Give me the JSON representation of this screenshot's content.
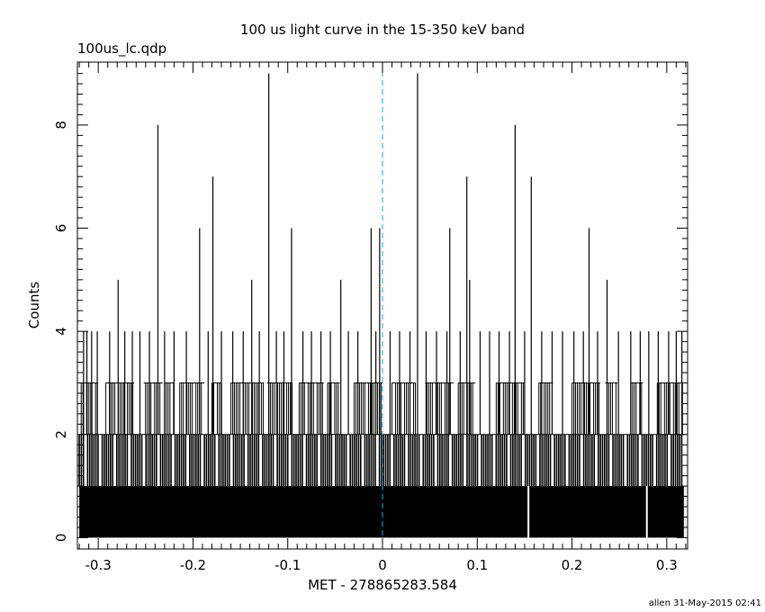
{
  "chart_data": {
    "type": "bar",
    "title": "100 us light curve in the 15-350 keV band",
    "subtitle": "100us_lc.qdp",
    "xlabel": "MET - 278865283.584",
    "ylabel": "Counts",
    "footer": "allen 31-May-2015 02:41",
    "xlim": [
      -0.322,
      0.322
    ],
    "ylim": [
      -0.22,
      9.22
    ],
    "xticks": [
      -0.3,
      -0.2,
      -0.1,
      0,
      0.1,
      0.2,
      0.3
    ],
    "xtick_labels": [
      "-0.3",
      "-0.2",
      "-0.1",
      "0",
      "0.1",
      "0.2",
      "0.3"
    ],
    "yticks": [
      0,
      2,
      4,
      6,
      8
    ],
    "ytick_labels": [
      "0",
      "2",
      "4",
      "6",
      "8"
    ],
    "bin_width": 0.0001,
    "x_range": [
      -0.32,
      0.32
    ],
    "min_count": 1,
    "typical_count": 2,
    "reference_line": {
      "x": 0,
      "color": "#2a9fd6",
      "style": "dashed"
    },
    "count_3_regions": [
      [
        -0.318,
        -0.3
      ],
      [
        -0.292,
        -0.262
      ],
      [
        -0.252,
        -0.232
      ],
      [
        -0.23,
        -0.22
      ],
      [
        -0.214,
        -0.188
      ],
      [
        -0.18,
        -0.17
      ],
      [
        -0.16,
        -0.125
      ],
      [
        -0.122,
        -0.095
      ],
      [
        -0.088,
        -0.062
      ],
      [
        -0.058,
        -0.045
      ],
      [
        -0.03,
        0.0
      ],
      [
        0.01,
        0.035
      ],
      [
        0.045,
        0.075
      ],
      [
        0.08,
        0.098
      ],
      [
        0.12,
        0.15
      ],
      [
        0.165,
        0.18
      ],
      [
        0.2,
        0.23
      ],
      [
        0.235,
        0.248
      ],
      [
        0.262,
        0.275
      ],
      [
        0.29,
        0.318
      ]
    ],
    "zero_bins": [
      0.154,
      0.279,
      0.319
    ],
    "peaks": [
      {
        "x": -0.3155,
        "y": 4
      },
      {
        "x": -0.312,
        "y": 4
      },
      {
        "x": -0.307,
        "y": 4
      },
      {
        "x": -0.301,
        "y": 4
      },
      {
        "x": -0.288,
        "y": 4
      },
      {
        "x": -0.279,
        "y": 5
      },
      {
        "x": -0.272,
        "y": 4
      },
      {
        "x": -0.264,
        "y": 4
      },
      {
        "x": -0.256,
        "y": 4
      },
      {
        "x": -0.246,
        "y": 4
      },
      {
        "x": -0.237,
        "y": 8
      },
      {
        "x": -0.23,
        "y": 4
      },
      {
        "x": -0.22,
        "y": 4
      },
      {
        "x": -0.207,
        "y": 4
      },
      {
        "x": -0.193,
        "y": 6
      },
      {
        "x": -0.184,
        "y": 4
      },
      {
        "x": -0.179,
        "y": 7
      },
      {
        "x": -0.17,
        "y": 4
      },
      {
        "x": -0.158,
        "y": 4
      },
      {
        "x": -0.147,
        "y": 4
      },
      {
        "x": -0.138,
        "y": 5
      },
      {
        "x": -0.13,
        "y": 4
      },
      {
        "x": -0.12,
        "y": 9
      },
      {
        "x": -0.112,
        "y": 4
      },
      {
        "x": -0.104,
        "y": 4
      },
      {
        "x": -0.096,
        "y": 6
      },
      {
        "x": -0.084,
        "y": 4
      },
      {
        "x": -0.075,
        "y": 4
      },
      {
        "x": -0.065,
        "y": 4
      },
      {
        "x": -0.055,
        "y": 4
      },
      {
        "x": -0.044,
        "y": 5
      },
      {
        "x": -0.036,
        "y": 4
      },
      {
        "x": -0.026,
        "y": 4
      },
      {
        "x": -0.012,
        "y": 6
      },
      {
        "x": -0.007,
        "y": 4
      },
      {
        "x": -0.003,
        "y": 6
      },
      {
        "x": 0.008,
        "y": 4
      },
      {
        "x": 0.018,
        "y": 4
      },
      {
        "x": 0.029,
        "y": 4
      },
      {
        "x": 0.037,
        "y": 9
      },
      {
        "x": 0.046,
        "y": 4
      },
      {
        "x": 0.057,
        "y": 4
      },
      {
        "x": 0.068,
        "y": 4
      },
      {
        "x": 0.071,
        "y": 6
      },
      {
        "x": 0.082,
        "y": 4
      },
      {
        "x": 0.089,
        "y": 7
      },
      {
        "x": 0.092,
        "y": 5
      },
      {
        "x": 0.103,
        "y": 4
      },
      {
        "x": 0.113,
        "y": 4
      },
      {
        "x": 0.123,
        "y": 4
      },
      {
        "x": 0.134,
        "y": 4
      },
      {
        "x": 0.14,
        "y": 8
      },
      {
        "x": 0.15,
        "y": 4
      },
      {
        "x": 0.157,
        "y": 7
      },
      {
        "x": 0.168,
        "y": 4
      },
      {
        "x": 0.179,
        "y": 4
      },
      {
        "x": 0.19,
        "y": 4
      },
      {
        "x": 0.202,
        "y": 4
      },
      {
        "x": 0.212,
        "y": 4
      },
      {
        "x": 0.218,
        "y": 6
      },
      {
        "x": 0.227,
        "y": 4
      },
      {
        "x": 0.237,
        "y": 5
      },
      {
        "x": 0.249,
        "y": 4
      },
      {
        "x": 0.262,
        "y": 4
      },
      {
        "x": 0.272,
        "y": 4
      },
      {
        "x": 0.281,
        "y": 4
      },
      {
        "x": 0.291,
        "y": 4
      },
      {
        "x": 0.302,
        "y": 4
      },
      {
        "x": 0.31,
        "y": 4
      },
      {
        "x": 0.316,
        "y": 4
      }
    ]
  }
}
